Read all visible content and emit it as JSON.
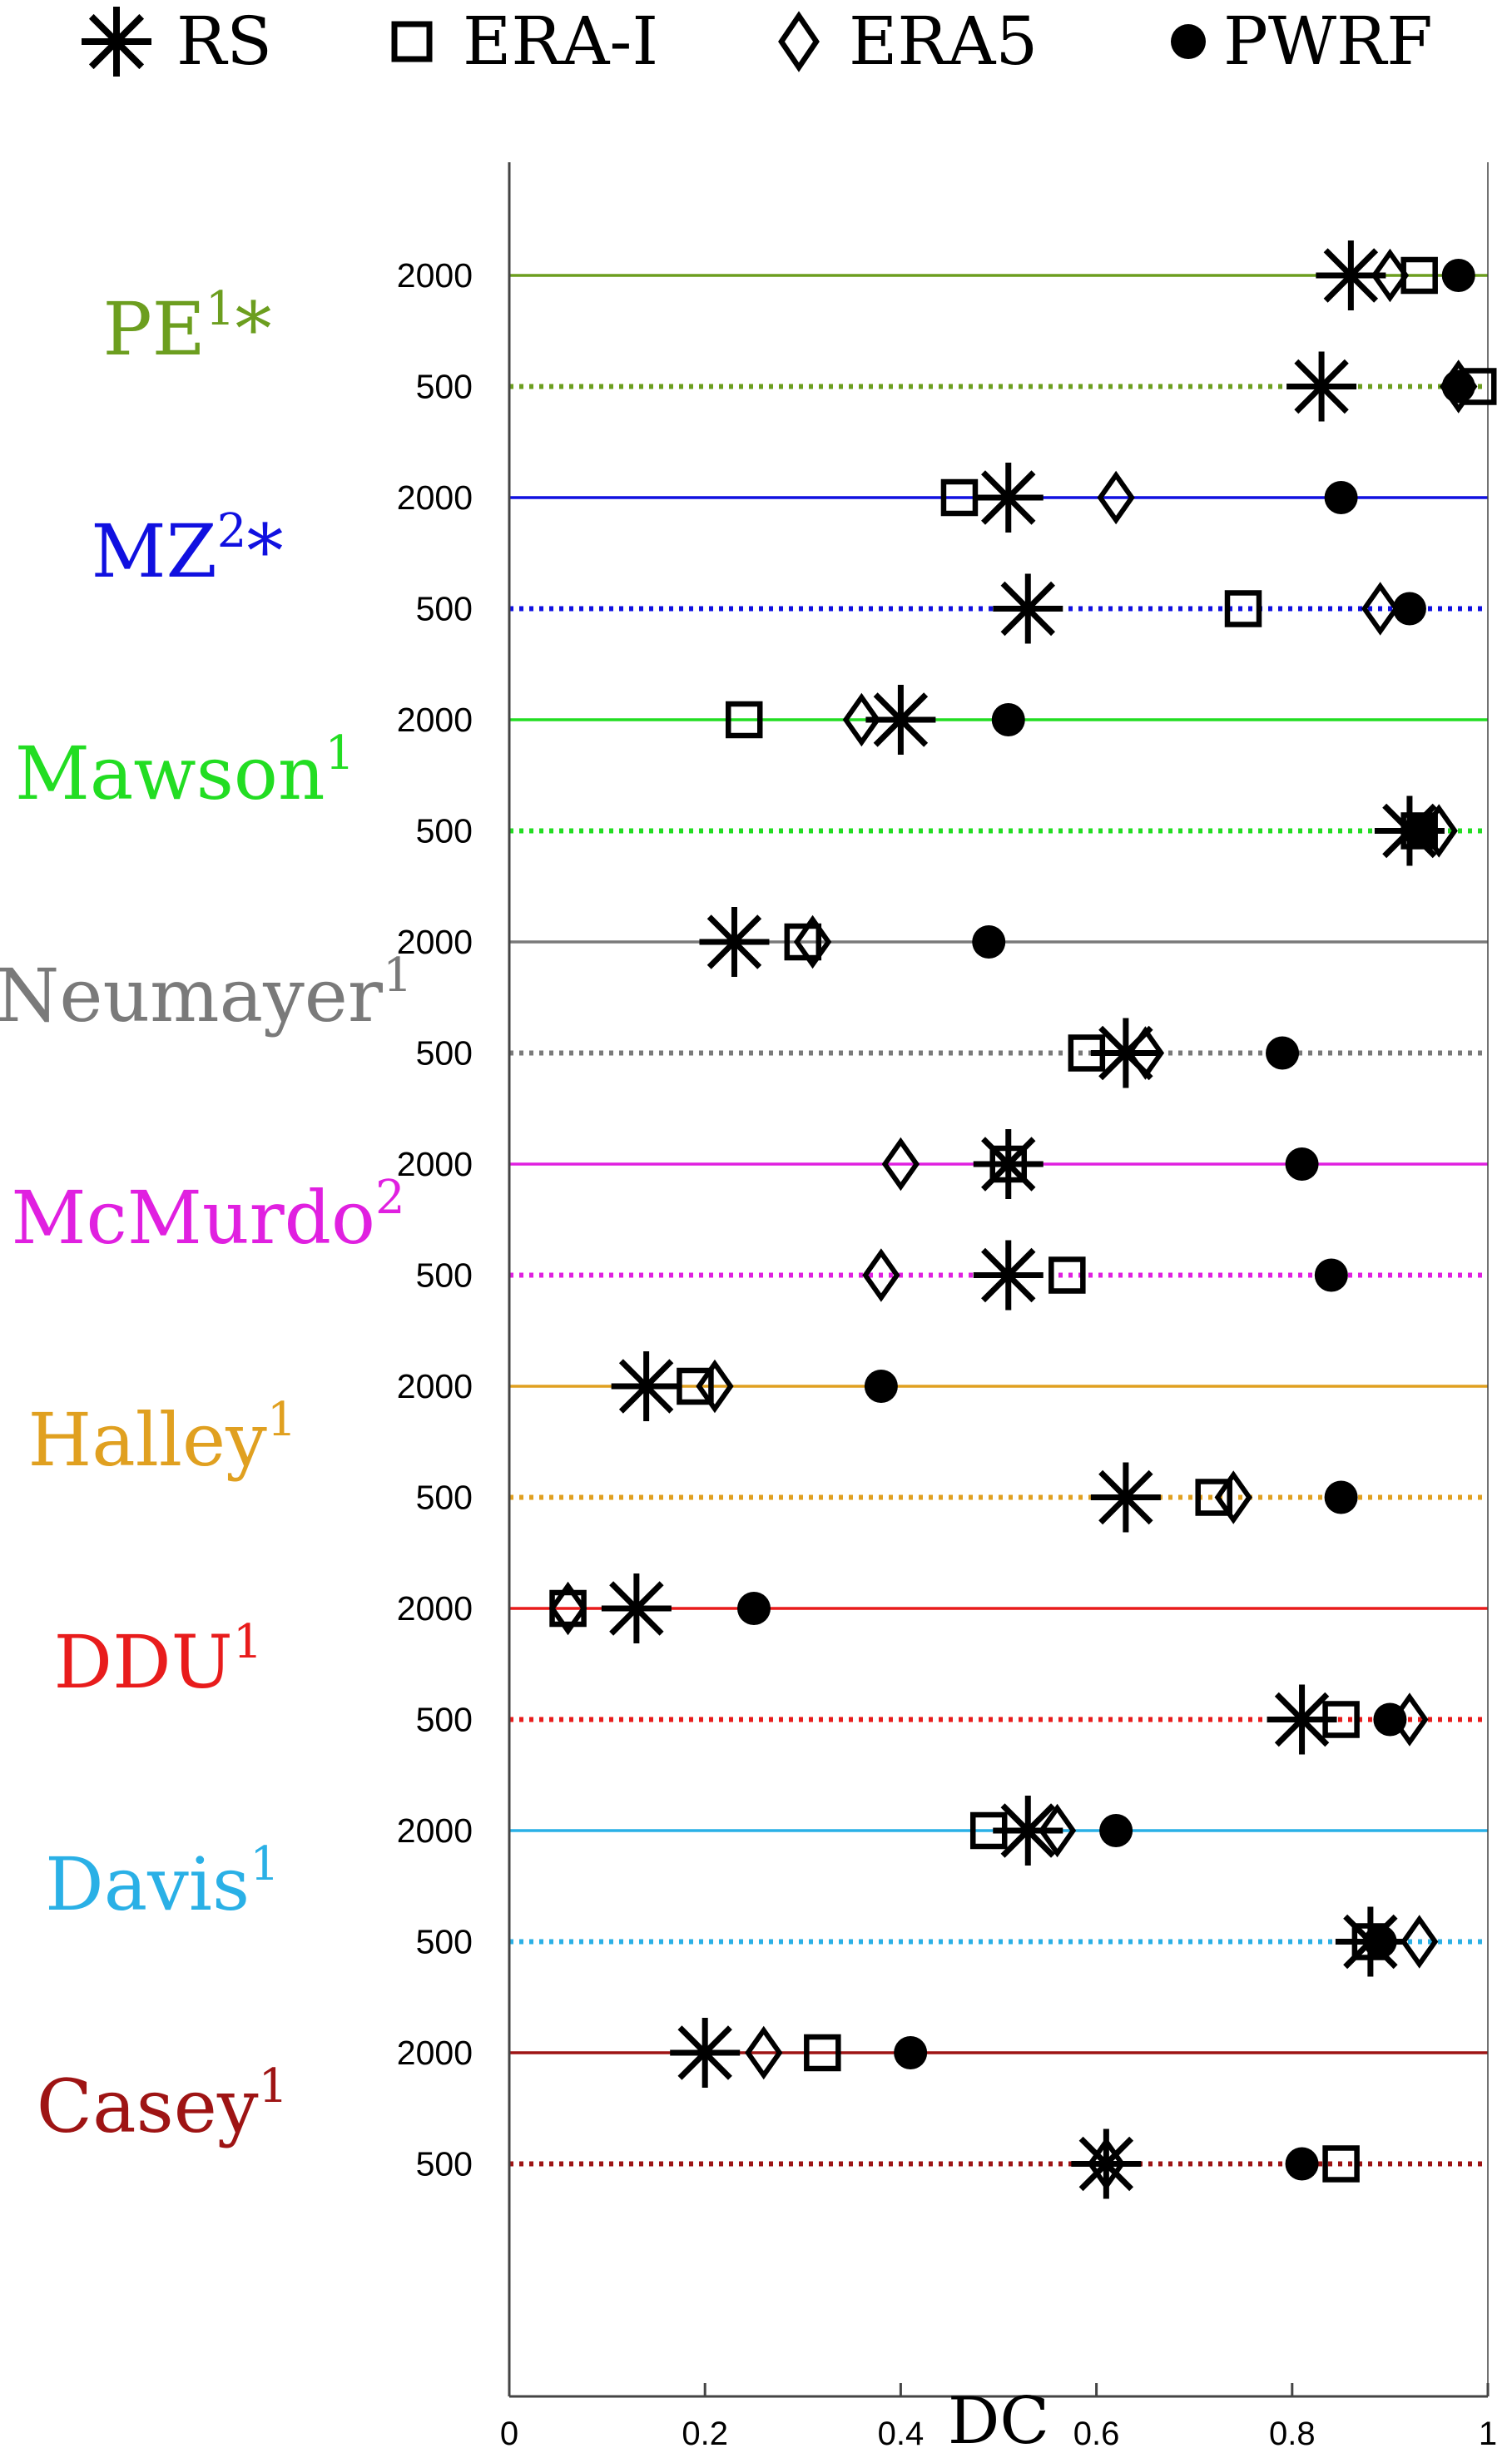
{
  "chart_data": {
    "type": "scatter",
    "xlabel": "DC",
    "xlim": [
      0,
      1
    ],
    "xticks": [
      "0",
      "0.2",
      "0.4",
      "0.6",
      "0.8",
      "1"
    ],
    "legend": {
      "placement": "top",
      "entries": [
        {
          "label": "RS",
          "marker": "asterisk-icon"
        },
        {
          "label": "ERA-I",
          "marker": "square-icon"
        },
        {
          "label": "ERA5",
          "marker": "diamond-icon"
        },
        {
          "label": "PWRF",
          "marker": "filled-circle-icon"
        }
      ]
    },
    "stations": [
      {
        "name": "PE",
        "sup": "1",
        "suffix": "*",
        "color": "#6c9e1f",
        "levels": [
          {
            "level": "2000",
            "style": "solid",
            "RS": 0.86,
            "ERA-I": 0.93,
            "ERA5": 0.9,
            "PWRF": 0.97
          },
          {
            "level": "500",
            "style": "dotted",
            "RS": 0.83,
            "ERA-I": 0.99,
            "ERA5": 0.97,
            "PWRF": 0.97
          }
        ]
      },
      {
        "name": "MZ",
        "sup": "2",
        "suffix": "*",
        "color": "#1010e0",
        "levels": [
          {
            "level": "2000",
            "style": "solid",
            "RS": 0.51,
            "ERA-I": 0.46,
            "ERA5": 0.62,
            "PWRF": 0.85
          },
          {
            "level": "500",
            "style": "dotted",
            "RS": 0.53,
            "ERA-I": 0.75,
            "ERA5": 0.89,
            "PWRF": 0.92
          }
        ]
      },
      {
        "name": "Mawson",
        "sup": "1",
        "suffix": "",
        "color": "#22dd22",
        "levels": [
          {
            "level": "2000",
            "style": "solid",
            "RS": 0.4,
            "ERA-I": 0.24,
            "ERA5": 0.36,
            "PWRF": 0.51
          },
          {
            "level": "500",
            "style": "dotted",
            "RS": 0.92,
            "ERA-I": 0.93,
            "ERA5": 0.95,
            "PWRF": 0.93
          }
        ]
      },
      {
        "name": "Neumayer",
        "sup": "1",
        "suffix": "",
        "color": "#7a7a7a",
        "levels": [
          {
            "level": "2000",
            "style": "solid",
            "RS": 0.23,
            "ERA-I": 0.3,
            "ERA5": 0.31,
            "PWRF": 0.49
          },
          {
            "level": "500",
            "style": "dotted",
            "RS": 0.63,
            "ERA-I": 0.59,
            "ERA5": 0.65,
            "PWRF": 0.79
          }
        ]
      },
      {
        "name": "McMurdo",
        "sup": "2",
        "suffix": "",
        "color": "#e020e0",
        "levels": [
          {
            "level": "2000",
            "style": "solid",
            "RS": 0.51,
            "ERA-I": 0.51,
            "ERA5": 0.4,
            "PWRF": 0.81
          },
          {
            "level": "500",
            "style": "dotted",
            "RS": 0.51,
            "ERA-I": 0.57,
            "ERA5": 0.38,
            "PWRF": 0.84
          }
        ]
      },
      {
        "name": "Halley",
        "sup": "1",
        "suffix": "",
        "color": "#e0a020",
        "levels": [
          {
            "level": "2000",
            "style": "solid",
            "RS": 0.14,
            "ERA-I": 0.19,
            "ERA5": 0.21,
            "PWRF": 0.38
          },
          {
            "level": "500",
            "style": "dotted",
            "RS": 0.63,
            "ERA-I": 0.72,
            "ERA5": 0.74,
            "PWRF": 0.85
          }
        ]
      },
      {
        "name": "DDU",
        "sup": "1",
        "suffix": "",
        "color": "#e81c1c",
        "levels": [
          {
            "level": "2000",
            "style": "solid",
            "RS": 0.13,
            "ERA-I": 0.06,
            "ERA5": 0.06,
            "PWRF": 0.25
          },
          {
            "level": "500",
            "style": "dotted",
            "RS": 0.81,
            "ERA-I": 0.85,
            "ERA5": 0.92,
            "PWRF": 0.9
          }
        ]
      },
      {
        "name": "Davis",
        "sup": "1",
        "suffix": "",
        "color": "#2ab0e6",
        "levels": [
          {
            "level": "2000",
            "style": "solid",
            "RS": 0.53,
            "ERA-I": 0.49,
            "ERA5": 0.56,
            "PWRF": 0.62
          },
          {
            "level": "500",
            "style": "dotted",
            "RS": 0.88,
            "ERA-I": 0.88,
            "ERA5": 0.93,
            "PWRF": 0.89
          }
        ]
      },
      {
        "name": "Casey",
        "sup": "1",
        "suffix": "",
        "color": "#9e1414",
        "levels": [
          {
            "level": "2000",
            "style": "solid",
            "RS": 0.2,
            "ERA-I": 0.32,
            "ERA5": 0.26,
            "PWRF": 0.41
          },
          {
            "level": "500",
            "style": "dotted",
            "RS": 0.61,
            "ERA-I": 0.85,
            "ERA5": 0.61,
            "PWRF": 0.81
          }
        ]
      }
    ]
  }
}
